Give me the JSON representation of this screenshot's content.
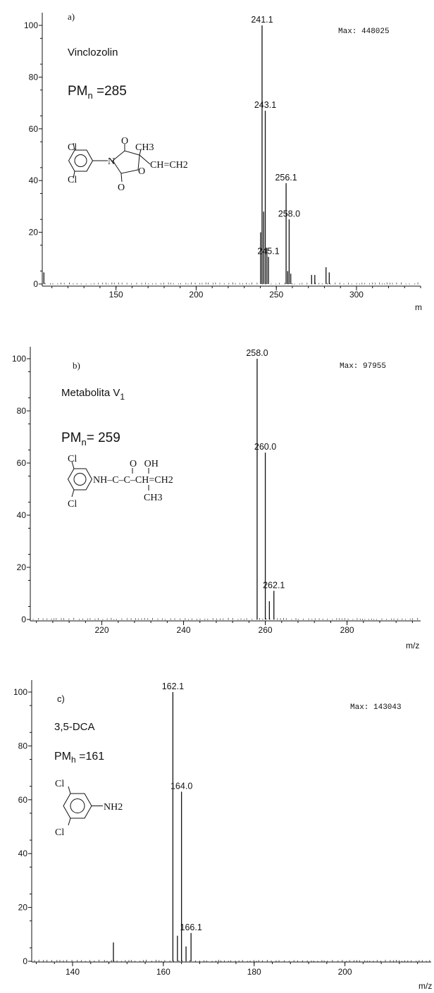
{
  "chart_data": [
    {
      "type": "bar",
      "panel_label": "a)",
      "compound": "Vinclozolin",
      "pm_prefix": "PM",
      "pm_sub": "n",
      "pm_value": " =285",
      "max_text": "Max:  448025",
      "x_unit_label": "m",
      "xlim": [
        104,
        340
      ],
      "ylim": [
        0,
        100
      ],
      "xticks": [
        150,
        200,
        250,
        300
      ],
      "yticks": [
        0,
        20,
        40,
        60,
        80,
        100
      ],
      "peaks": [
        {
          "x": 105,
          "y": 4.5
        },
        {
          "x": 240.2,
          "y": 20
        },
        {
          "x": 241.1,
          "y": 100,
          "label": "241.1"
        },
        {
          "x": 242.1,
          "y": 28
        },
        {
          "x": 243.1,
          "y": 67,
          "label": "243.1"
        },
        {
          "x": 244.1,
          "y": 14
        },
        {
          "x": 245.1,
          "y": 10.5,
          "label": "245.1"
        },
        {
          "x": 256.1,
          "y": 39,
          "label": "256.1"
        },
        {
          "x": 257.1,
          "y": 5
        },
        {
          "x": 258.0,
          "y": 25,
          "label": "258.0"
        },
        {
          "x": 259.0,
          "y": 4
        },
        {
          "x": 272.0,
          "y": 3.5
        },
        {
          "x": 274.0,
          "y": 3.5
        },
        {
          "x": 281.0,
          "y": 6.5
        },
        {
          "x": 283.0,
          "y": 4.5
        }
      ],
      "structure": {
        "cl_top": "Cl",
        "cl_bottom": "Cl",
        "n": "N",
        "o_top": "O",
        "o_ring": "O",
        "o_bottom": "O",
        "ch3": "CH3",
        "vinyl": "CH=CH2"
      }
    },
    {
      "type": "bar",
      "panel_label": "b)",
      "compound": "Metabolita V",
      "compound_sub": "1",
      "pm_prefix": "PM",
      "pm_sub": "n",
      "pm_value": "= 259",
      "max_text": "Max:  97955",
      "x_unit_label": "m/z",
      "xlim": [
        202.5,
        298
      ],
      "ylim": [
        0,
        100
      ],
      "xticks": [
        220,
        240,
        260,
        280
      ],
      "yticks": [
        0,
        20,
        40,
        60,
        80,
        100
      ],
      "peaks": [
        {
          "x": 258.0,
          "y": 100,
          "label": "258.0"
        },
        {
          "x": 260.0,
          "y": 64,
          "label": "260.0"
        },
        {
          "x": 261.0,
          "y": 7
        },
        {
          "x": 262.1,
          "y": 11,
          "label": "262.1"
        }
      ],
      "structure": {
        "cl_top": "Cl",
        "cl_bottom": "Cl",
        "chain_top": "O   OH",
        "chain": "NH–C–C–CH=CH2",
        "ch3": "CH3"
      }
    },
    {
      "type": "bar",
      "panel_label": "c)",
      "compound": "3,5-DCA",
      "pm_prefix": "PM",
      "pm_sub": "h",
      "pm_value": " =161",
      "max_text": "Max:  143043",
      "x_unit_label": "m/z",
      "xlim": [
        131,
        219
      ],
      "ylim": [
        0,
        100
      ],
      "xticks": [
        140,
        160,
        180,
        200
      ],
      "yticks": [
        0,
        20,
        40,
        60,
        80,
        100
      ],
      "peaks": [
        {
          "x": 149.0,
          "y": 7
        },
        {
          "x": 162.1,
          "y": 100,
          "label": "162.1"
        },
        {
          "x": 163.1,
          "y": 9.5
        },
        {
          "x": 164.0,
          "y": 63,
          "label": "164.0"
        },
        {
          "x": 165.0,
          "y": 5.5
        },
        {
          "x": 166.1,
          "y": 10.5,
          "label": "166.1"
        }
      ],
      "structure": {
        "cl_top": "Cl",
        "cl_bottom": "Cl",
        "nh2": "NH2"
      }
    }
  ]
}
